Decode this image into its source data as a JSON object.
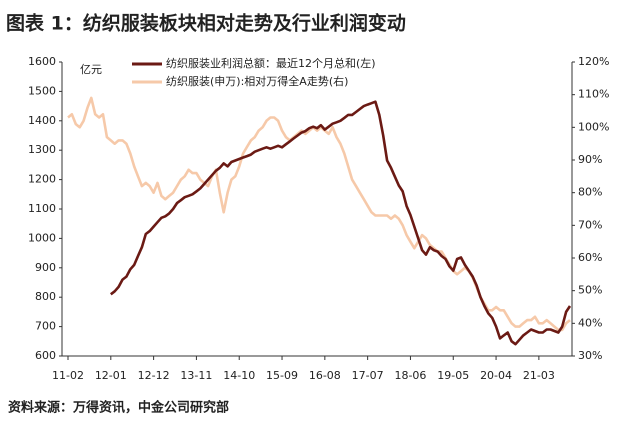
{
  "chart_data": {
    "type": "line",
    "title": "图表 1：纺织服装板块相对走势及行业利润变动",
    "ylabel": "亿元",
    "source": "资料来源：万得资讯，中金公司研究部",
    "categories": [
      "11-02",
      null,
      null,
      null,
      null,
      null,
      null,
      null,
      null,
      null,
      null,
      "12-01",
      null,
      null,
      null,
      null,
      null,
      null,
      null,
      null,
      null,
      null,
      "12-12",
      null,
      null,
      null,
      null,
      null,
      null,
      null,
      null,
      null,
      null,
      "13-11",
      null,
      null,
      null,
      null,
      null,
      null,
      null,
      null,
      null,
      null,
      "14-10",
      null,
      null,
      null,
      null,
      null,
      null,
      null,
      null,
      null,
      null,
      "15-09",
      null,
      null,
      null,
      null,
      null,
      null,
      null,
      null,
      null,
      null,
      "16-08",
      null,
      null,
      null,
      null,
      null,
      null,
      null,
      null,
      null,
      null,
      "17-07",
      null,
      null,
      null,
      null,
      null,
      null,
      null,
      null,
      null,
      null,
      "18-06",
      null,
      null,
      null,
      null,
      null,
      null,
      null,
      null,
      null,
      null,
      "19-05",
      null,
      null,
      null,
      null,
      null,
      null,
      null,
      null,
      null,
      null,
      "20-04",
      null,
      null,
      null,
      null,
      null,
      null,
      null,
      null,
      null,
      null,
      "21-03",
      null,
      null,
      null,
      null,
      null,
      null,
      null,
      null
    ],
    "series": [
      {
        "name": "纺织服装业利润总额：最近12个月总和(左)",
        "color": "#6b1a14",
        "values": [
          null,
          null,
          null,
          null,
          null,
          null,
          null,
          null,
          null,
          null,
          null,
          810,
          820,
          835,
          860,
          870,
          895,
          910,
          940,
          970,
          1015,
          1025,
          1040,
          1055,
          1070,
          1075,
          1085,
          1100,
          1120,
          1130,
          1140,
          1145,
          1150,
          1160,
          1170,
          1185,
          1200,
          1215,
          1230,
          1240,
          1255,
          1245,
          1260,
          1265,
          1270,
          1275,
          1280,
          1285,
          1295,
          1300,
          1305,
          1310,
          1305,
          1310,
          1315,
          1310,
          1320,
          1330,
          1340,
          1350,
          1360,
          1365,
          1375,
          1380,
          1375,
          1385,
          1370,
          1380,
          1390,
          1395,
          1400,
          1410,
          1420,
          1420,
          1430,
          1440,
          1450,
          1455,
          1460,
          1465,
          1420,
          1350,
          1265,
          1240,
          1210,
          1180,
          1160,
          1110,
          1080,
          1040,
          1000,
          960,
          945,
          970,
          960,
          955,
          940,
          930,
          905,
          890,
          930,
          935,
          910,
          890,
          870,
          840,
          800,
          770,
          745,
          730,
          700,
          660,
          670,
          680,
          650,
          640,
          655,
          670,
          680,
          690,
          685,
          680,
          680,
          690,
          690,
          685,
          680,
          700,
          750,
          770
        ]
      },
      {
        "name": "纺织服装(申万):相对万得全A走势(右)",
        "color": "#f6c9a9",
        "axis": "y2",
        "values": [
          103,
          104,
          101,
          100,
          102,
          106,
          109,
          104,
          103,
          104,
          97,
          96,
          95,
          96,
          96,
          95,
          92,
          88,
          85,
          82,
          83,
          82,
          80,
          83,
          79,
          78,
          79,
          80,
          82,
          84,
          85,
          87,
          86,
          86,
          84,
          83,
          82,
          85,
          87,
          80,
          74,
          80,
          84,
          85,
          88,
          92,
          94,
          96,
          97,
          99,
          100,
          102,
          103,
          103,
          102,
          99,
          97,
          96,
          97,
          98,
          99,
          98,
          99,
          100,
          99,
          100,
          99,
          98,
          100,
          97,
          95,
          92,
          88,
          84,
          82,
          80,
          78,
          76,
          74,
          73,
          73,
          73,
          73,
          72,
          73,
          72,
          70,
          67,
          65,
          63,
          65,
          67,
          66,
          64,
          63,
          62,
          62,
          60,
          58,
          56,
          55,
          56,
          57,
          56,
          54,
          51,
          48,
          46,
          44,
          44,
          45,
          44,
          44,
          42,
          40,
          39,
          39,
          40,
          41,
          41,
          42,
          40,
          40,
          41,
          40,
          39,
          38,
          38,
          40,
          41
        ]
      }
    ],
    "ylim": [
      600,
      1600
    ],
    "yticks": [
      600,
      700,
      800,
      900,
      1000,
      1100,
      1200,
      1300,
      1400,
      1500,
      1600
    ],
    "y2lim": [
      30,
      120
    ],
    "y2ticks": [
      {
        "value": 30,
        "label": "30%"
      },
      {
        "value": 40,
        "label": "40%"
      },
      {
        "value": 50,
        "label": "50%"
      },
      {
        "value": 60,
        "label": "60%"
      },
      {
        "value": 70,
        "label": "70%"
      },
      {
        "value": 80,
        "label": "80%"
      },
      {
        "value": 90,
        "label": "90%"
      },
      {
        "value": 100,
        "label": "100%"
      },
      {
        "value": 110,
        "label": "110%"
      },
      {
        "value": 120,
        "label": "120%"
      }
    ],
    "grid": false
  }
}
